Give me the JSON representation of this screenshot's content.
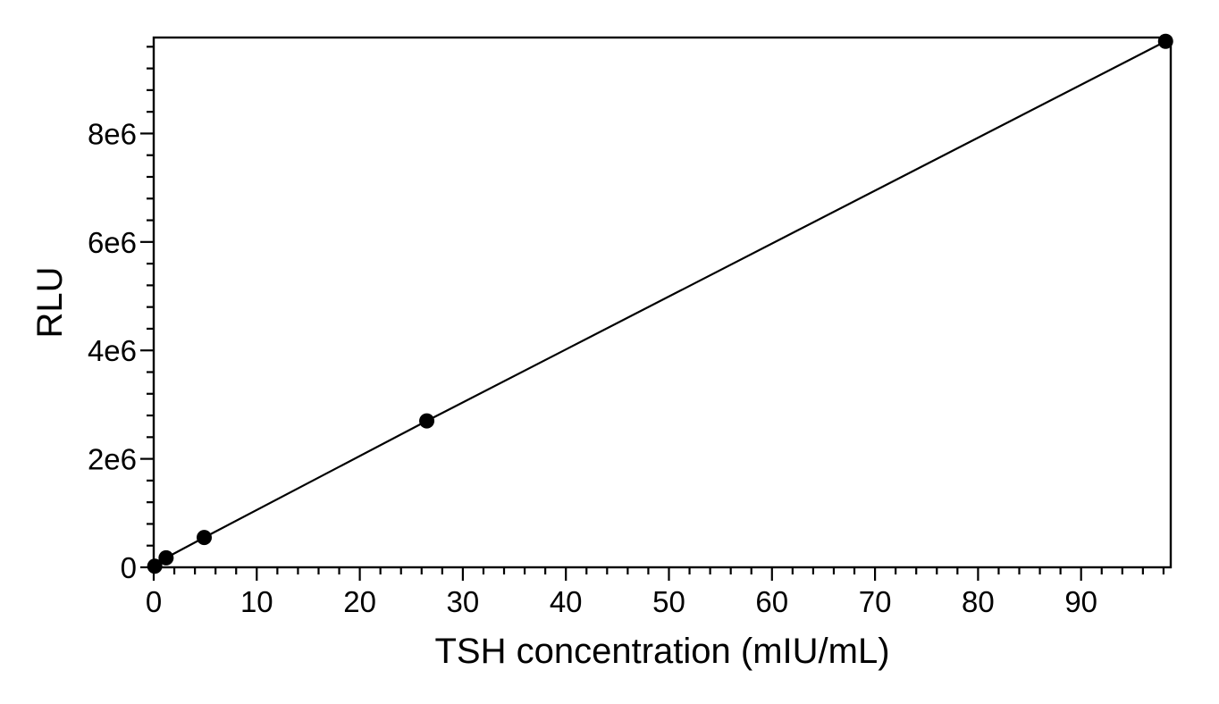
{
  "chart_data": {
    "type": "line",
    "title": "",
    "xlabel": "TSH concentration (mIU/mL)",
    "ylabel": "RLU",
    "x": [
      0.1,
      1.2,
      4.9,
      26.5,
      98.2
    ],
    "y": [
      20000,
      175000,
      550000,
      2700000,
      9700000
    ],
    "xlim": [
      0,
      98.7
    ],
    "ylim": [
      0,
      9770000
    ],
    "x_major_ticks": [
      0,
      10,
      20,
      30,
      40,
      50,
      60,
      70,
      80,
      90
    ],
    "x_major_tick_labels": [
      "0",
      "10",
      "20",
      "30",
      "40",
      "50",
      "60",
      "70",
      "80",
      "90"
    ],
    "x_minor_tick_step": 2,
    "y_major_ticks": [
      0,
      2000000,
      4000000,
      6000000,
      8000000
    ],
    "y_major_tick_labels": [
      "0",
      "2e6",
      "4e6",
      "6e6",
      "8e6"
    ],
    "y_minor_tick_step": 400000,
    "grid": false,
    "legend": null,
    "frame": "full-box",
    "marker": "filled-circle",
    "line_color": "#000000",
    "marker_color": "#000000",
    "axis_color": "#000000",
    "background_color": "#ffffff"
  }
}
